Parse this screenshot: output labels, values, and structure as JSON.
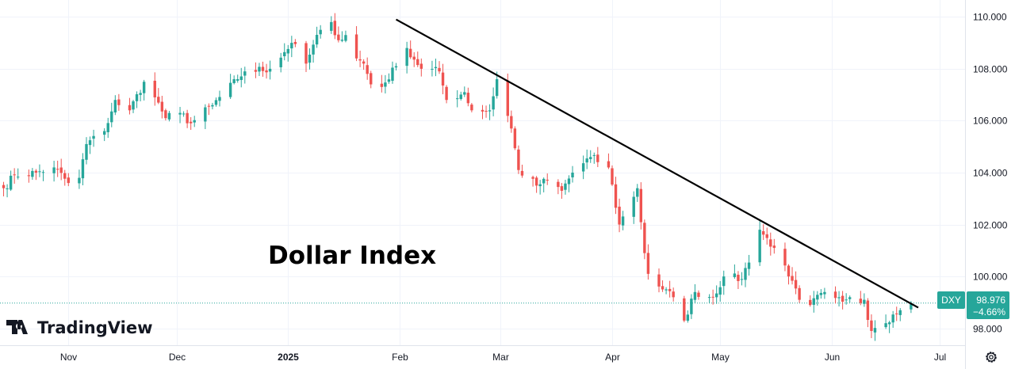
{
  "chart_data": {
    "type": "candlestick",
    "title": "Dollar Index",
    "symbol": "DXY",
    "last_price": "98.976",
    "change_pct": "−4.66%",
    "brand": "TradingView",
    "y_ticks": [
      "110.000",
      "108.000",
      "106.000",
      "104.000",
      "102.000",
      "100.000",
      "98.000"
    ],
    "y_tick_values": [
      110,
      108,
      106,
      104,
      102,
      100,
      98
    ],
    "ylim": [
      97.35,
      110.65
    ],
    "xlim": [
      "2024-10-13",
      "2025-07-08"
    ],
    "x_ticks": [
      {
        "label": "Nov",
        "date": "2024-11-01",
        "bold": false
      },
      {
        "label": "Dec",
        "date": "2024-12-01",
        "bold": false
      },
      {
        "label": "2025",
        "date": "2025-01-01",
        "bold": true
      },
      {
        "label": "Feb",
        "date": "2025-02-01",
        "bold": false
      },
      {
        "label": "Mar",
        "date": "2025-03-01",
        "bold": false
      },
      {
        "label": "Apr",
        "date": "2025-04-01",
        "bold": false
      },
      {
        "label": "May",
        "date": "2025-05-01",
        "bold": false
      },
      {
        "label": "Jun",
        "date": "2025-06-01",
        "bold": false
      },
      {
        "label": "Jul",
        "date": "2025-07-01",
        "bold": false
      }
    ],
    "trendline": {
      "start": {
        "date": "2025-01-31",
        "value": 109.9
      },
      "end": {
        "date": "2025-06-25",
        "value": 98.8
      }
    },
    "price_line": 98.976,
    "grid": true,
    "colors": {
      "up": "#26a69a",
      "down": "#ef5350",
      "badge": "#26a69a",
      "trendline": "#000000",
      "grid": "#f0f3fa",
      "text": "#131722"
    },
    "close_anchors": [
      [
        "2024-10-14",
        103.4
      ],
      [
        "2024-10-17",
        103.9
      ],
      [
        "2024-10-23",
        104.0
      ],
      [
        "2024-10-28",
        104.2
      ],
      [
        "2024-11-01",
        103.6
      ],
      [
        "2024-11-04",
        103.8
      ],
      [
        "2024-11-06",
        105.1
      ],
      [
        "2024-11-11",
        105.6
      ],
      [
        "2024-11-14",
        106.8
      ],
      [
        "2024-11-15",
        106.6
      ],
      [
        "2024-11-18",
        106.4
      ],
      [
        "2024-11-22",
        107.5
      ],
      [
        "2024-11-25",
        106.9
      ],
      [
        "2024-11-28",
        106.1
      ],
      [
        "2024-12-02",
        106.3
      ],
      [
        "2024-12-05",
        105.9
      ],
      [
        "2024-12-11",
        106.6
      ],
      [
        "2024-12-18",
        107.6
      ],
      [
        "2024-12-20",
        107.9
      ],
      [
        "2024-12-27",
        108.0
      ],
      [
        "2025-01-02",
        109.0
      ],
      [
        "2025-01-06",
        108.2
      ],
      [
        "2025-01-10",
        109.5
      ],
      [
        "2025-01-13",
        109.8
      ],
      [
        "2025-01-15",
        109.1
      ],
      [
        "2025-01-17",
        109.3
      ],
      [
        "2025-01-20",
        108.4
      ],
      [
        "2025-01-22",
        108.2
      ],
      [
        "2025-01-24",
        107.4
      ],
      [
        "2025-01-27",
        107.3
      ],
      [
        "2025-01-31",
        108.1
      ],
      [
        "2025-02-03",
        108.8
      ],
      [
        "2025-02-07",
        108.0
      ],
      [
        "2025-02-12",
        107.9
      ],
      [
        "2025-02-14",
        106.8
      ],
      [
        "2025-02-19",
        107.1
      ],
      [
        "2025-02-21",
        106.4
      ],
      [
        "2025-02-26",
        106.4
      ],
      [
        "2025-02-28",
        107.6
      ],
      [
        "2025-03-04",
        105.7
      ],
      [
        "2025-03-06",
        104.1
      ],
      [
        "2025-03-11",
        103.5
      ],
      [
        "2025-03-14",
        103.7
      ],
      [
        "2025-03-18",
        103.3
      ],
      [
        "2025-03-21",
        104.0
      ],
      [
        "2025-03-26",
        104.6
      ],
      [
        "2025-03-31",
        104.2
      ],
      [
        "2025-04-03",
        102.0
      ],
      [
        "2025-04-08",
        103.4
      ],
      [
        "2025-04-10",
        100.9
      ],
      [
        "2025-04-11",
        100.1
      ],
      [
        "2025-04-15",
        99.5
      ],
      [
        "2025-04-18",
        99.2
      ],
      [
        "2025-04-21",
        98.3
      ],
      [
        "2025-04-24",
        99.4
      ],
      [
        "2025-04-29",
        99.2
      ],
      [
        "2025-05-02",
        100.0
      ],
      [
        "2025-05-07",
        99.9
      ],
      [
        "2025-05-12",
        101.8
      ],
      [
        "2025-05-16",
        101.1
      ],
      [
        "2025-05-20",
        100.0
      ],
      [
        "2025-05-23",
        99.1
      ],
      [
        "2025-05-26",
        98.9
      ],
      [
        "2025-05-30",
        99.4
      ],
      [
        "2025-06-03",
        99.2
      ],
      [
        "2025-06-06",
        99.2
      ],
      [
        "2025-06-10",
        99.1
      ],
      [
        "2025-06-12",
        97.9
      ],
      [
        "2025-06-16",
        98.2
      ],
      [
        "2025-06-20",
        98.7
      ],
      [
        "2025-06-23",
        98.976
      ]
    ]
  }
}
